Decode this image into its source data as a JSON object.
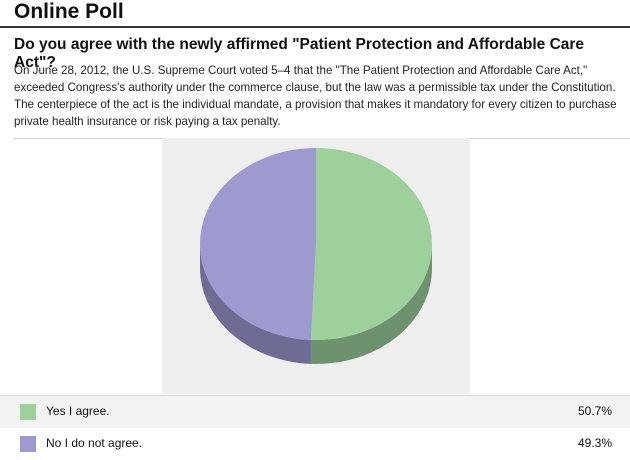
{
  "header": {
    "title": "Online Poll"
  },
  "poll": {
    "question": "Do you agree with the newly affirmed \"Patient Protection and Affordable Care Act\"?",
    "description": "On June 28, 2012, the U.S. Supreme Court voted 5–4 that the \"The Patient Protection and Affordable Care Act,\" exceeded Congress's authority under the commerce clause, but the law was a permissible tax under the Constitution. The centerpiece of the act is the individual mandate, a provision that makes it mandatory for every citizen to purchase private health insurance or risk paying a tax penalty."
  },
  "chart_data": {
    "type": "pie",
    "style": "3d",
    "title": "",
    "labels": [
      "Yes I agree.",
      "No I do not agree."
    ],
    "values": [
      50.7,
      49.3
    ],
    "value_labels": [
      "50.7%",
      "49.3%"
    ],
    "colors": [
      "#9dd09b",
      "#9d9ad0"
    ],
    "legend": "bottom"
  }
}
